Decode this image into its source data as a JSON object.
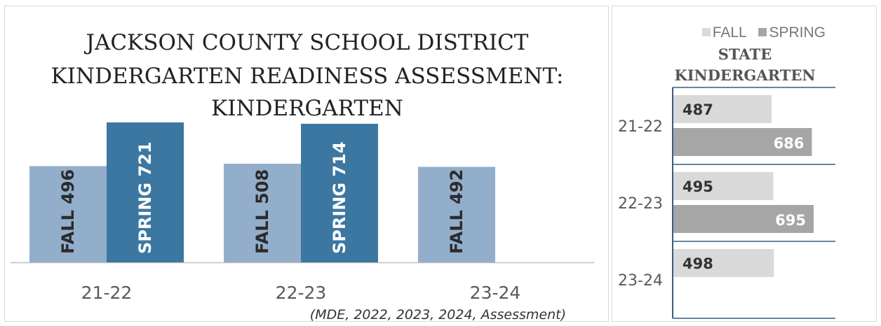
{
  "left_chart": {
    "title_lines": [
      "JACKSON COUNTY SCHOOL DISTRICT",
      "KINDERGARTEN READINESS ASSESSMENT:",
      "KINDERGARTEN"
    ],
    "source_note": "(MDE,  2022, 2023, 2024, Assessment)"
  },
  "right_chart": {
    "title_lines": [
      "STATE",
      "KINDERGARTEN"
    ],
    "legend": {
      "fall": "FALL",
      "spring": "SPRING"
    }
  },
  "chart_data": [
    {
      "type": "bar",
      "orientation": "vertical",
      "title": "JACKSON COUNTY SCHOOL DISTRICT KINDERGARTEN READINESS ASSESSMENT: KINDERGARTEN",
      "categories": [
        "21-22",
        "22-23",
        "23-24"
      ],
      "series": [
        {
          "name": "FALL",
          "values": [
            496,
            508,
            492
          ],
          "color": "#92aecb"
        },
        {
          "name": "SPRING",
          "values": [
            721,
            714,
            null
          ],
          "color": "#3b77a1"
        }
      ],
      "data_labels": [
        [
          "FALL 496",
          "FALL 508",
          "FALL 492"
        ],
        [
          "SPRING 721",
          "SPRING 714",
          null
        ]
      ],
      "ylim": [
        0,
        760
      ],
      "grid": false,
      "legend": "none"
    },
    {
      "type": "bar",
      "orientation": "horizontal",
      "title": "STATE KINDERGARTEN",
      "categories": [
        "21-22",
        "22-23",
        "23-24"
      ],
      "series": [
        {
          "name": "FALL",
          "values": [
            487,
            495,
            498
          ],
          "color": "#d9d9d9"
        },
        {
          "name": "SPRING",
          "values": [
            686,
            695,
            null
          ],
          "color": "#a6a6a6"
        }
      ],
      "xlim": [
        0,
        800
      ],
      "grid": false,
      "legend": "top"
    }
  ]
}
